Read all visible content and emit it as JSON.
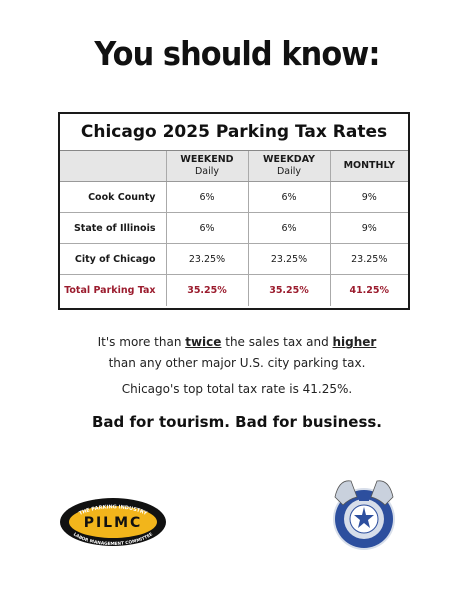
{
  "headline": "You should know:",
  "table": {
    "title": "Chicago 2025 Parking Tax Rates",
    "headers": [
      {
        "main": "",
        "sub": ""
      },
      {
        "main": "WEEKEND",
        "sub": "Daily"
      },
      {
        "main": "WEEKDAY",
        "sub": "Daily"
      },
      {
        "main": "MONTHLY",
        "sub": ""
      }
    ],
    "rows": [
      {
        "label": "Cook County",
        "weekend": "6%",
        "weekday": "6%",
        "monthly": "9%"
      },
      {
        "label": "State of Illinois",
        "weekend": "6%",
        "weekday": "6%",
        "monthly": "9%"
      },
      {
        "label": "City of Chicago",
        "weekend": "23.25%",
        "weekday": "23.25%",
        "monthly": "23.25%"
      }
    ],
    "total": {
      "label": "Total Parking Tax",
      "weekend": "35.25%",
      "weekday": "35.25%",
      "monthly": "41.25%"
    }
  },
  "body": {
    "line1_pre": "It's more than ",
    "line1_emph1": "twice",
    "line1_mid": " the sales tax and ",
    "line1_emph2": "higher",
    "line2": "than any other major U.S. city parking tax.",
    "line3": "Chicago's top total tax rate is 41.25%."
  },
  "tagline": "Bad for tourism. Bad for business.",
  "logos": {
    "pilmc_text": "PILMC",
    "pilmc_arc_top": "THE PARKING INDUSTRY",
    "pilmc_arc_bottom": "LABOR MANAGEMENT COMMITTEE",
    "teamsters_seal": "International Brotherhood of Teamsters"
  },
  "colors": {
    "accent_red": "#9b1c2e",
    "pilmc_gold": "#f2b51b",
    "teamsters_blue": "#2d4f9e"
  }
}
